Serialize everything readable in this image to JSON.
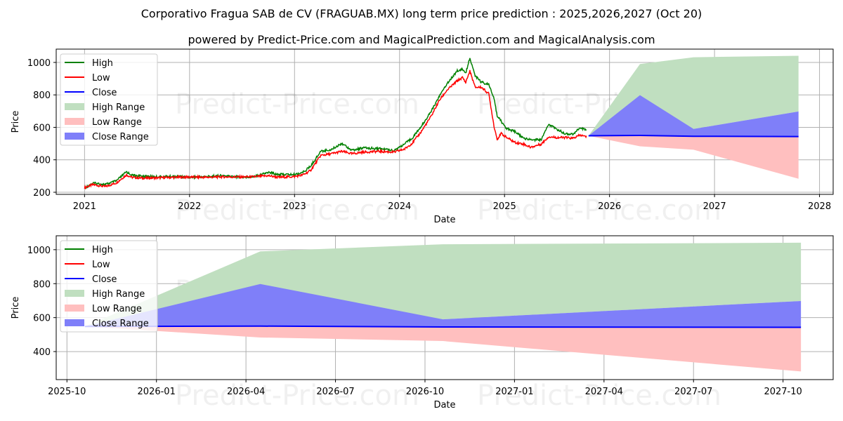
{
  "title": "Corporativo Fragua SAB de CV (FRAGUAB.MX) long term price prediction : 2025,2026,2027 (Oct 20)",
  "subtitle": "powered by Predict-Price.com and MagicalPrediction.com and MagicalAnalysis.com",
  "watermark": "Predict-Price.com",
  "colors": {
    "high": "#008000",
    "low": "#ff0000",
    "close": "#0000ff",
    "high_range": "#c0dfc0",
    "low_range": "#ffbfbf",
    "close_range": "#7f7ff9"
  },
  "chart_data": [
    {
      "type": "line",
      "title": "Historical prices and long term forecast",
      "xlabel": "Date",
      "ylabel": "Price",
      "xlim": [
        2020.73,
        2028.13
      ],
      "ylim": [
        187,
        1082
      ],
      "x_ticks": [
        2021,
        2022,
        2023,
        2024,
        2025,
        2026,
        2027,
        2028
      ],
      "x_tick_labels": [
        "2021",
        "2022",
        "2023",
        "2024",
        "2025",
        "2026",
        "2027",
        "2028"
      ],
      "y_ticks": [
        200,
        400,
        600,
        800,
        1000
      ],
      "y_tick_labels": [
        "200",
        "400",
        "600",
        "800",
        "1000"
      ],
      "grid": true,
      "legend_position": "top-left",
      "legend": [
        "High",
        "Low",
        "Close",
        "High Range",
        "Low Range",
        "Close Range"
      ],
      "history_x": [
        2021.0,
        2021.08,
        2021.2,
        2021.3,
        2021.4,
        2021.45,
        2021.55,
        2021.7,
        2021.85,
        2022.0,
        2022.15,
        2022.3,
        2022.5,
        2022.6,
        2022.75,
        2022.85,
        2023.0,
        2023.08,
        2023.15,
        2023.25,
        2023.35,
        2023.45,
        2023.55,
        2023.65,
        2023.8,
        2023.95,
        2024.05,
        2024.12,
        2024.2,
        2024.3,
        2024.38,
        2024.45,
        2024.55,
        2024.6,
        2024.63,
        2024.67,
        2024.72,
        2024.78,
        2024.85,
        2024.9,
        2024.93,
        2024.97,
        2025.02,
        2025.1,
        2025.18,
        2025.25,
        2025.35,
        2025.42,
        2025.5,
        2025.58,
        2025.65,
        2025.72,
        2025.78
      ],
      "history_high": [
        233,
        263,
        255,
        276,
        333,
        312,
        306,
        302,
        305,
        300,
        303,
        309,
        301,
        303,
        330,
        317,
        316,
        330,
        365,
        460,
        470,
        509,
        465,
        480,
        476,
        466,
        505,
        541,
        606,
        705,
        800,
        875,
        955,
        965,
        940,
        1035,
        925,
        885,
        870,
        782,
        680,
        642,
        600,
        580,
        540,
        530,
        530,
        625,
        595,
        567,
        565,
        605,
        590
      ],
      "history_low": [
        222,
        240,
        228,
        250,
        300,
        285,
        280,
        282,
        285,
        287,
        285,
        288,
        287,
        288,
        295,
        285,
        290,
        300,
        325,
        420,
        430,
        445,
        430,
        440,
        445,
        440,
        460,
        495,
        560,
        660,
        760,
        820,
        880,
        900,
        870,
        940,
        840,
        840,
        800,
        600,
        520,
        555,
        530,
        500,
        490,
        470,
        490,
        535,
        530,
        530,
        525,
        545,
        535
      ],
      "forecast_x": [
        2025.8,
        2026.29,
        2026.8,
        2027.8
      ],
      "close": [
        548,
        550,
        545,
        543
      ],
      "high_range": [
        548,
        990,
        1032,
        1041
      ],
      "high_range_lower": [
        548,
        550,
        590,
        698
      ],
      "close_range": [
        548,
        798,
        590,
        698
      ],
      "low_range": [
        548,
        483,
        462,
        283
      ]
    },
    {
      "type": "area",
      "title": "Forecast detail",
      "xlabel": "Date",
      "ylabel": "Price",
      "xlim": [
        2025.72,
        2027.89
      ],
      "ylim": [
        235,
        1082
      ],
      "x_ticks": [
        2025.75,
        2026.0,
        2026.25,
        2026.5,
        2026.75,
        2027.0,
        2027.25,
        2027.5,
        2027.75
      ],
      "x_tick_labels": [
        "2025-10",
        "2026-01",
        "2026-04",
        "2026-07",
        "2026-10",
        "2027-01",
        "2027-04",
        "2027-07",
        "2027-10"
      ],
      "y_ticks": [
        400,
        600,
        800,
        1000
      ],
      "y_tick_labels": [
        "400",
        "600",
        "800",
        "1000"
      ],
      "grid": true,
      "legend_position": "top-left",
      "legend": [
        "High",
        "Low",
        "Close",
        "High Range",
        "Low Range",
        "Close Range"
      ],
      "forecast_x": [
        2025.8,
        2026.29,
        2026.8,
        2027.8
      ],
      "close": [
        548,
        550,
        545,
        543
      ],
      "high_range": [
        548,
        990,
        1032,
        1041
      ],
      "high_range_lower": [
        548,
        550,
        590,
        698
      ],
      "close_range": [
        548,
        798,
        590,
        698
      ],
      "low_range": [
        548,
        483,
        462,
        283
      ]
    }
  ]
}
